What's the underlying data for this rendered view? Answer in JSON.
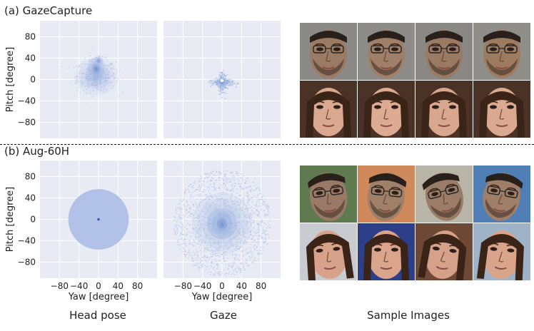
{
  "sections": [
    {
      "label": "(a) GazeCapture"
    },
    {
      "label": "(b) Aug-60H"
    }
  ],
  "column_captions": {
    "head_pose": "Head pose",
    "gaze": "Gaze",
    "samples": "Sample Images"
  },
  "colors": {
    "panel_bg": "#e9ebf4",
    "grid": "#ffffff",
    "density_light": "#aebfe6",
    "density_mid": "#6f94d6",
    "density_dark": "#3a5fa6"
  },
  "chart_data": [
    {
      "id": "gazecapture-head-pose",
      "type": "heatmap",
      "title": "",
      "row": "(a) GazeCapture",
      "column": "Head pose",
      "xlabel": "",
      "ylabel": "Pitch [degree]",
      "xlim": [
        -120,
        120
      ],
      "ylim": [
        -110,
        110
      ],
      "xticks": [],
      "yticks": [
        80,
        40,
        0,
        -40,
        -80
      ],
      "distribution": "compact blob, yaw about -55..55, pitch about -38..48, densest near yaw -5, pitch 15",
      "blobs": [
        {
          "cx": -5,
          "cy": 5,
          "rx": 45,
          "ry": 35,
          "weight": 0.35
        },
        {
          "cx": -5,
          "cy": 20,
          "rx": 18,
          "ry": 22,
          "weight": 0.8
        },
        {
          "cx": 0,
          "cy": 35,
          "rx": 10,
          "ry": 10,
          "weight": 0.6
        }
      ]
    },
    {
      "id": "gazecapture-gaze",
      "type": "heatmap",
      "title": "",
      "row": "(a) GazeCapture",
      "column": "Gaze",
      "xlabel": "",
      "ylabel": "",
      "xlim": [
        -120,
        120
      ],
      "ylim": [
        -110,
        110
      ],
      "xticks": [],
      "yticks": [],
      "distribution": "cross-shaped cluster, yaw about -30..35, pitch about -25..10, centered near (0, -5)",
      "blobs": [
        {
          "cx": 0,
          "cy": -5,
          "rx": 30,
          "ry": 8,
          "weight": 0.55
        },
        {
          "cx": 0,
          "cy": -5,
          "rx": 8,
          "ry": 20,
          "weight": 0.55
        },
        {
          "cx": 0,
          "cy": -5,
          "rx": 12,
          "ry": 10,
          "weight": 0.6
        }
      ]
    },
    {
      "id": "aug60h-head-pose",
      "type": "heatmap",
      "title": "",
      "row": "(b) Aug-60H",
      "column": "Head pose",
      "xlabel": "Yaw [degree]",
      "ylabel": "Pitch [degree]",
      "xlim": [
        -120,
        120
      ],
      "ylim": [
        -110,
        110
      ],
      "xticks": [
        -80,
        -40,
        0,
        40,
        80
      ],
      "yticks": [
        80,
        40,
        0,
        -40,
        -80
      ],
      "distribution": "uniform disk of radius about 62 degrees centred at (0, 0) with a small dense spot at the origin",
      "disk_radius": 62,
      "blobs": [
        {
          "cx": 0,
          "cy": 0,
          "rx": 2,
          "ry": 2,
          "weight": 0.9
        }
      ]
    },
    {
      "id": "aug60h-gaze",
      "type": "heatmap",
      "title": "",
      "row": "(b) Aug-60H",
      "column": "Gaze",
      "xlabel": "Yaw [degree]",
      "ylabel": "",
      "xlim": [
        -120,
        120
      ],
      "ylim": [
        -110,
        110
      ],
      "xticks": [
        -80,
        -40,
        0,
        40,
        80
      ],
      "yticks": [],
      "distribution": "broad roughly circular cloud, radius about 100 degrees, densest near (0, -10)",
      "blobs": [
        {
          "cx": 0,
          "cy": -8,
          "rx": 62,
          "ry": 58,
          "weight": 0.55
        },
        {
          "cx": 0,
          "cy": -10,
          "rx": 22,
          "ry": 26,
          "weight": 0.55
        }
      ]
    }
  ],
  "sample_images": {
    "gazecapture": [
      {
        "subject": "male subject with glasses, neutral gaze",
        "skin": "#9b7b64",
        "hair": "#2a201b",
        "bg": "#8c8a86",
        "beard": true,
        "glasses": true,
        "tilt": 0
      },
      {
        "subject": "male subject with glasses, slight head turn",
        "skin": "#a07f68",
        "hair": "#2a201b",
        "bg": "#8e8c88",
        "beard": true,
        "glasses": true,
        "tilt": 0
      },
      {
        "subject": "male subject with glasses, looking down",
        "skin": "#9a7a63",
        "hair": "#2a201b",
        "bg": "#8a8884",
        "beard": true,
        "glasses": true,
        "tilt": 0
      },
      {
        "subject": "male subject with glasses, eyes lowered",
        "skin": "#9d7b61",
        "hair": "#2a201b",
        "bg": "#908e89",
        "beard": true,
        "glasses": true,
        "tilt": 0
      },
      {
        "subject": "female subject, frontal",
        "skin": "#d9a88e",
        "hair": "#3a2418",
        "bg": "#4a3326",
        "beard": false,
        "glasses": false,
        "tilt": 0
      },
      {
        "subject": "female subject, frontal",
        "skin": "#dcab91",
        "hair": "#3a2418",
        "bg": "#4a3326",
        "beard": false,
        "glasses": false,
        "tilt": 0
      },
      {
        "subject": "female subject, frontal",
        "skin": "#d8a78d",
        "hair": "#3a2418",
        "bg": "#4a3326",
        "beard": false,
        "glasses": false,
        "tilt": 0
      },
      {
        "subject": "female subject, frontal",
        "skin": "#dba990",
        "hair": "#3a2418",
        "bg": "#4a3326",
        "beard": false,
        "glasses": false,
        "tilt": 0
      }
    ],
    "aug60h": [
      {
        "subject": "male subject, rotated head, green background",
        "skin": "#9a7a66",
        "hair": "#2a201b",
        "bg": "#5f7a4e",
        "beard": true,
        "glasses": true,
        "tilt": -8
      },
      {
        "subject": "male subject, head turned, orange background",
        "skin": "#a08068",
        "hair": "#2a201b",
        "bg": "#d0895a",
        "beard": true,
        "glasses": true,
        "tilt": 6
      },
      {
        "subject": "male subject, head tilted down, grey background",
        "skin": "#9b7c66",
        "hair": "#2a201b",
        "bg": "#b9b4a8",
        "beard": true,
        "glasses": true,
        "tilt": -14
      },
      {
        "subject": "male subject, head tilted, blue background",
        "skin": "#9f7f68",
        "hair": "#2a201b",
        "bg": "#4f7fb4",
        "beard": true,
        "glasses": true,
        "tilt": 10
      },
      {
        "subject": "female subject, looking up-left, light background",
        "skin": "#d8a28a",
        "hair": "#3a2418",
        "bg": "#c8ccd0",
        "beard": false,
        "glasses": false,
        "tilt": -6
      },
      {
        "subject": "female subject, head tilted back, dark blue background",
        "skin": "#dba58c",
        "hair": "#3a2418",
        "bg": "#2e3f8a",
        "beard": false,
        "glasses": false,
        "tilt": 0
      },
      {
        "subject": "female subject, head turned, brown background",
        "skin": "#d6a189",
        "hair": "#3a2418",
        "bg": "#6e4a36",
        "beard": false,
        "glasses": false,
        "tilt": 8
      },
      {
        "subject": "female subject, head turned, light blue background",
        "skin": "#daa48b",
        "hair": "#3a2418",
        "bg": "#9fb3c8",
        "beard": false,
        "glasses": false,
        "tilt": 5
      }
    ]
  }
}
